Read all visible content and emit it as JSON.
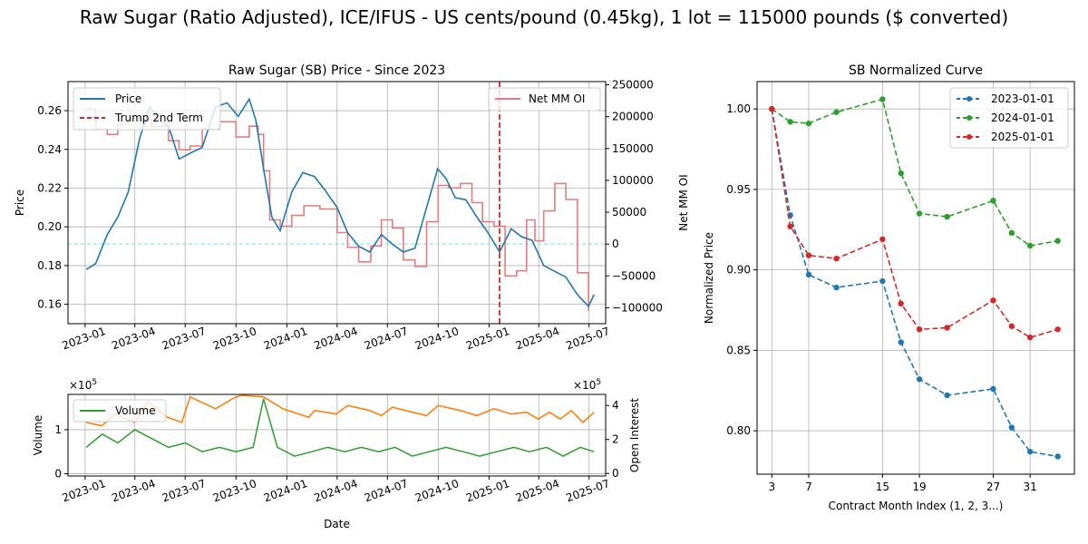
{
  "suptitle": "Raw Sugar (Ratio Adjusted), ICE/IFUS - US cents/pound (0.45kg), 1 lot = 115000 pounds ($ converted)",
  "colors": {
    "price": "#1f77b4",
    "net_mm_oi": "#e77c7e",
    "trump_line": "#d62728",
    "zero_line": "#7fe3ff",
    "volume": "#2ca02c",
    "open_interest": "#ff7f0e",
    "curve_2023": "#1f77b4",
    "curve_2024": "#2ca02c",
    "curve_2025": "#d62728",
    "grid": "#b0b0b0"
  },
  "chart_data": [
    {
      "type": "line",
      "title": "Raw Sugar (SB) Price - Since 2023",
      "xlabel": "",
      "ylabel": "Price",
      "y2label": "Net MM OI",
      "xlim": [
        "2022-12-01",
        "2025-07-31"
      ],
      "ylim": [
        0.15,
        0.275
      ],
      "y2lim": [
        -125000,
        255000
      ],
      "x_ticks": [
        "2023-01",
        "2023-04",
        "2023-07",
        "2023-10",
        "2024-01",
        "2024-04",
        "2024-07",
        "2024-10",
        "2025-01",
        "2025-04",
        "2025-07"
      ],
      "y_ticks": [
        "0.16",
        "0.18",
        "0.20",
        "0.22",
        "0.24",
        "0.26"
      ],
      "y2_ticks": [
        "−100000",
        "−50000",
        "0",
        "50000",
        "100000",
        "150000",
        "200000",
        "250000"
      ],
      "grid": true,
      "legend": [
        "Price",
        "Trump 2nd Term"
      ],
      "legend_placement": "top-left",
      "legend2": [
        "Net MM OI"
      ],
      "legend2_placement": "top-right",
      "vertical_marker": {
        "name": "Trump 2nd Term",
        "x": "2025-01-20"
      },
      "zero_reference": 0,
      "series": [
        {
          "name": "Price",
          "axis": "left",
          "x": [
            "2023-01-03",
            "2023-01-20",
            "2023-02-10",
            "2023-03-01",
            "2023-03-20",
            "2023-04-10",
            "2023-04-28",
            "2023-05-15",
            "2023-06-01",
            "2023-06-20",
            "2023-07-10",
            "2023-08-01",
            "2023-08-25",
            "2023-09-15",
            "2023-10-05",
            "2023-10-25",
            "2023-11-06",
            "2023-11-20",
            "2023-12-05",
            "2023-12-20",
            "2024-01-10",
            "2024-01-30",
            "2024-02-20",
            "2024-03-10",
            "2024-04-01",
            "2024-04-20",
            "2024-05-10",
            "2024-05-30",
            "2024-06-20",
            "2024-07-10",
            "2024-07-30",
            "2024-08-20",
            "2024-09-10",
            "2024-09-30",
            "2024-10-15",
            "2024-11-01",
            "2024-11-20",
            "2024-12-10",
            "2024-12-30",
            "2025-01-20",
            "2025-02-10",
            "2025-02-28",
            "2025-03-20",
            "2025-04-10",
            "2025-04-30",
            "2025-05-20",
            "2025-06-10",
            "2025-06-30",
            "2025-07-10"
          ],
          "values": [
            0.178,
            0.181,
            0.196,
            0.205,
            0.218,
            0.246,
            0.262,
            0.255,
            0.252,
            0.235,
            0.238,
            0.241,
            0.262,
            0.264,
            0.257,
            0.266,
            0.255,
            0.23,
            0.205,
            0.198,
            0.218,
            0.228,
            0.226,
            0.219,
            0.21,
            0.197,
            0.19,
            0.187,
            0.196,
            0.191,
            0.187,
            0.189,
            0.21,
            0.23,
            0.225,
            0.215,
            0.214,
            0.205,
            0.197,
            0.187,
            0.199,
            0.195,
            0.193,
            0.18,
            0.177,
            0.174,
            0.165,
            0.159,
            0.165
          ]
        },
        {
          "name": "Net MM OI",
          "axis": "right",
          "x": [
            "2023-01-03",
            "2023-01-20",
            "2023-02-10",
            "2023-03-01",
            "2023-03-20",
            "2023-04-10",
            "2023-05-01",
            "2023-06-01",
            "2023-06-20",
            "2023-07-10",
            "2023-08-01",
            "2023-09-01",
            "2023-10-01",
            "2023-10-25",
            "2023-11-10",
            "2023-11-20",
            "2023-12-01",
            "2023-12-20",
            "2024-01-10",
            "2024-02-01",
            "2024-03-01",
            "2024-04-01",
            "2024-04-20",
            "2024-05-10",
            "2024-06-01",
            "2024-06-20",
            "2024-07-10",
            "2024-07-30",
            "2024-08-20",
            "2024-09-10",
            "2024-10-01",
            "2024-10-20",
            "2024-11-10",
            "2024-12-01",
            "2024-12-20",
            "2025-01-10",
            "2025-01-30",
            "2025-02-20",
            "2025-03-10",
            "2025-03-25",
            "2025-04-10",
            "2025-04-30",
            "2025-05-20",
            "2025-06-10",
            "2025-06-30"
          ],
          "values": [
            212000,
            180000,
            172000,
            188000,
            198000,
            195000,
            185000,
            162000,
            148000,
            154000,
            180000,
            192000,
            168000,
            185000,
            172000,
            115000,
            38000,
            28000,
            45000,
            60000,
            55000,
            18000,
            -5000,
            -28000,
            -3000,
            38000,
            25000,
            -25000,
            -35000,
            35000,
            92000,
            88000,
            95000,
            65000,
            35000,
            28000,
            -50000,
            -42000,
            38000,
            5000,
            52000,
            95000,
            70000,
            -45000,
            -105000
          ]
        }
      ]
    },
    {
      "type": "line",
      "title": "",
      "xlabel": "Date",
      "ylabel": "Volume",
      "y2label": "Open Interest",
      "ylim": [
        -0.05,
        1.8
      ],
      "y2lim": [
        -0.15,
        4.65
      ],
      "y_multiplier": "×10^5",
      "y2_multiplier": "×10^5",
      "y_ticks": [
        "0",
        "1"
      ],
      "y2_ticks": [
        "0",
        "2",
        "4"
      ],
      "grid": true,
      "legend": [
        "Volume"
      ],
      "legend_placement": "top-left",
      "series": [
        {
          "name": "Volume",
          "axis": "left",
          "x": [
            "2023-01-03",
            "2023-02-01",
            "2023-03-01",
            "2023-04-01",
            "2023-05-01",
            "2023-06-01",
            "2023-07-01",
            "2023-08-01",
            "2023-09-01",
            "2023-10-01",
            "2023-11-01",
            "2023-11-20",
            "2023-12-15",
            "2024-01-15",
            "2024-02-15",
            "2024-03-15",
            "2024-04-15",
            "2024-05-15",
            "2024-06-15",
            "2024-07-15",
            "2024-08-15",
            "2024-09-15",
            "2024-10-15",
            "2024-11-15",
            "2024-12-15",
            "2025-01-15",
            "2025-02-15",
            "2025-03-15",
            "2025-04-15",
            "2025-05-15",
            "2025-06-15",
            "2025-07-10"
          ],
          "values": [
            0.6,
            0.9,
            0.7,
            1.0,
            0.8,
            0.6,
            0.7,
            0.5,
            0.6,
            0.5,
            0.6,
            1.7,
            0.6,
            0.4,
            0.5,
            0.6,
            0.5,
            0.6,
            0.5,
            0.6,
            0.4,
            0.5,
            0.6,
            0.5,
            0.4,
            0.5,
            0.6,
            0.5,
            0.6,
            0.4,
            0.6,
            0.5
          ]
        },
        {
          "name": "Open Interest",
          "axis": "right",
          "x": [
            "2023-01-03",
            "2023-01-31",
            "2023-02-25",
            "2023-03-31",
            "2023-04-25",
            "2023-05-30",
            "2023-06-25",
            "2023-07-10",
            "2023-08-25",
            "2023-09-25",
            "2023-10-10",
            "2023-11-20",
            "2023-12-25",
            "2024-02-10",
            "2024-02-20",
            "2024-03-31",
            "2024-04-20",
            "2024-05-30",
            "2024-06-20",
            "2024-07-10",
            "2024-08-15",
            "2024-09-10",
            "2024-10-01",
            "2024-11-10",
            "2024-12-10",
            "2025-01-10",
            "2025-02-10",
            "2025-03-10",
            "2025-03-31",
            "2025-04-20",
            "2025-05-10",
            "2025-05-30",
            "2025-06-20",
            "2025-07-10"
          ],
          "values": [
            3.0,
            2.8,
            3.5,
            3.0,
            4.2,
            3.3,
            3.0,
            4.5,
            3.8,
            4.4,
            4.6,
            4.5,
            3.8,
            3.3,
            3.7,
            3.5,
            4.0,
            3.7,
            3.4,
            3.9,
            3.6,
            3.4,
            4.0,
            3.7,
            3.4,
            3.8,
            3.5,
            3.6,
            3.2,
            3.6,
            3.2,
            3.7,
            3.0,
            3.6
          ]
        }
      ]
    },
    {
      "type": "line",
      "title": "SB Normalized Curve",
      "xlabel": "Contract Month Index (1, 2, 3...)",
      "ylabel": "Normalized Price",
      "xlim": [
        1.4,
        35.8
      ],
      "ylim": [
        0.773,
        1.017
      ],
      "x_ticks": [
        "3",
        "7",
        "15",
        "19",
        "27",
        "31"
      ],
      "y_ticks": [
        "0.80",
        "0.85",
        "0.90",
        "0.95",
        "1.00"
      ],
      "grid": true,
      "legend": [
        "2023-01-01",
        "2024-01-01",
        "2025-01-01"
      ],
      "legend_placement": "top-right",
      "series": [
        {
          "name": "2023-01-01",
          "x": [
            3,
            5,
            7,
            10,
            15,
            17,
            19,
            22,
            27,
            29,
            31,
            34
          ],
          "values": [
            1.0,
            0.934,
            0.897,
            0.889,
            0.893,
            0.855,
            0.832,
            0.822,
            0.826,
            0.802,
            0.787,
            0.784
          ]
        },
        {
          "name": "2024-01-01",
          "x": [
            3,
            5,
            7,
            10,
            15,
            17,
            19,
            22,
            27,
            29,
            31,
            34
          ],
          "values": [
            1.0,
            0.992,
            0.991,
            0.998,
            1.006,
            0.96,
            0.935,
            0.933,
            0.943,
            0.923,
            0.915,
            0.918
          ]
        },
        {
          "name": "2025-01-01",
          "x": [
            3,
            5,
            7,
            10,
            15,
            17,
            19,
            22,
            27,
            29,
            31,
            34
          ],
          "values": [
            1.0,
            0.927,
            0.909,
            0.907,
            0.919,
            0.879,
            0.863,
            0.864,
            0.881,
            0.865,
            0.858,
            0.863
          ]
        }
      ]
    }
  ]
}
